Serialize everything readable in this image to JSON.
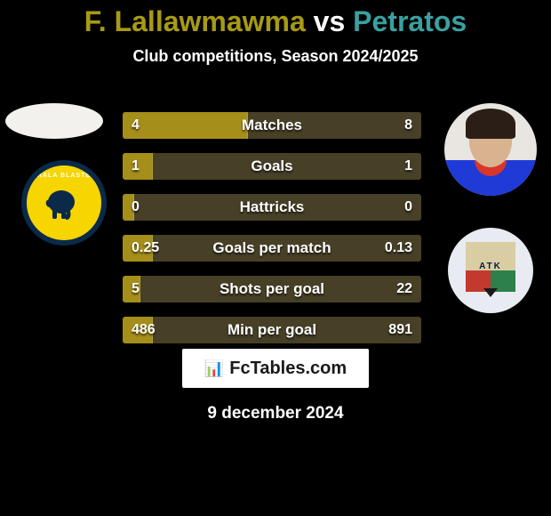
{
  "title": {
    "player1": "F. Lallawmawma",
    "vs": "vs",
    "player2": "Petratos",
    "player1_color": "#a89a14",
    "vs_color": "#ffffff",
    "player2_color": "#3aa0a0",
    "fontsize": 32
  },
  "subtitle": {
    "text": "Club competitions, Season 2024/2025",
    "fontsize": 18,
    "color": "#ffffff"
  },
  "left": {
    "avatar_oval_color": "#f2f1ed",
    "club": {
      "bg": "#f6d500",
      "ring": "#0b2a4a",
      "name": "KERALA BLASTERS",
      "elephant_color": "#0b2a4a"
    }
  },
  "right": {
    "avatar": {
      "bg": "#e9e6e1",
      "hair": "#2b1e16",
      "face": "#d9b28f",
      "jersey": "#1f3ad6",
      "collar": "#d8362b"
    },
    "club": {
      "bg": "#e9ebf2",
      "shield_top": "#d9cda3",
      "shield_botL": "#c23a2d",
      "shield_botR": "#2d7f4b",
      "tip": "#1a1a1a",
      "text": "ATK",
      "text_color": "#0b1b3b"
    }
  },
  "bars": {
    "bg_color": "#474027",
    "fill_color": "#a58e1a",
    "label_color": "#ffffff",
    "value_color": "#ffffff",
    "label_fontsize": 17,
    "value_fontsize": 16,
    "rows": [
      {
        "label": "Matches",
        "v1": "4",
        "v2": "8",
        "fill_pct": 42
      },
      {
        "label": "Goals",
        "v1": "1",
        "v2": "1",
        "fill_pct": 10
      },
      {
        "label": "Hattricks",
        "v1": "0",
        "v2": "0",
        "fill_pct": 4
      },
      {
        "label": "Goals per match",
        "v1": "0.25",
        "v2": "0.13",
        "fill_pct": 10
      },
      {
        "label": "Shots per goal",
        "v1": "5",
        "v2": "22",
        "fill_pct": 6
      },
      {
        "label": "Min per goal",
        "v1": "486",
        "v2": "891",
        "fill_pct": 10
      }
    ]
  },
  "branding": {
    "bg": "#ffffff",
    "mark": "📊",
    "mark_color": "#1a1a1a",
    "text": "FcTables.com",
    "text_color": "#1a1a1a"
  },
  "date": {
    "text": "9 december 2024",
    "fontsize": 19,
    "color": "#ffffff"
  },
  "page_bg": "#000000"
}
